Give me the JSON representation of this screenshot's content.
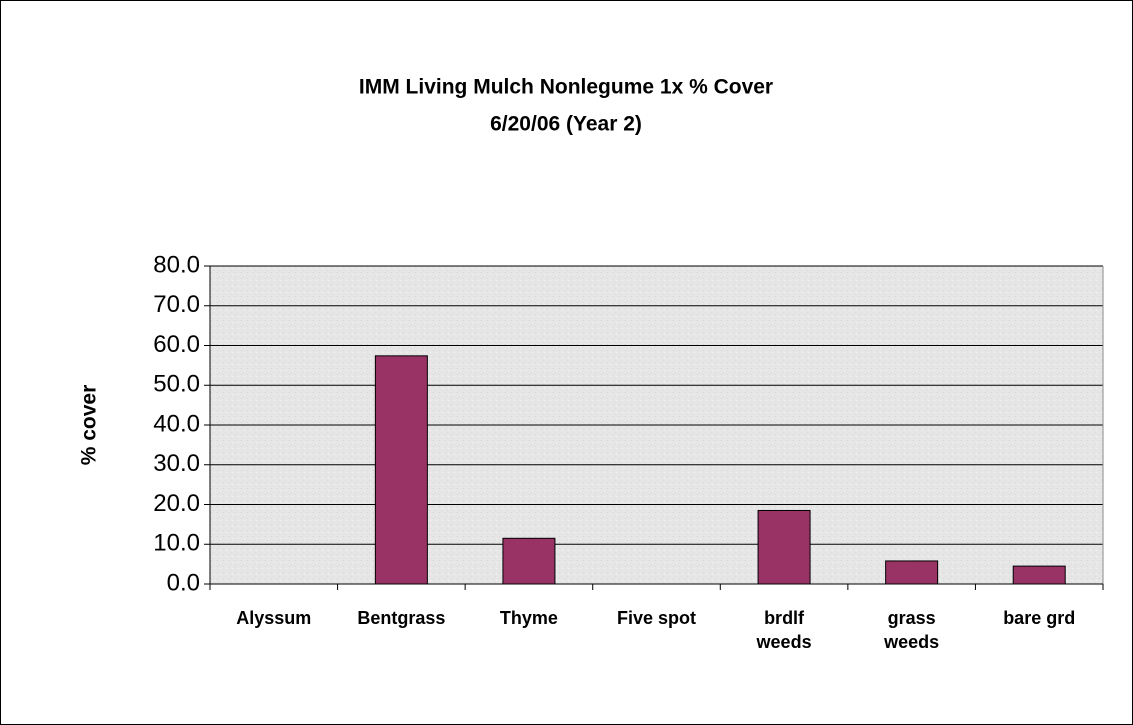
{
  "chart_data": {
    "type": "bar",
    "title": "IMM Living Mulch Nonlegume 1x % Cover",
    "subtitle": "6/20/06 (Year 2)",
    "y_label": "% cover",
    "categories": [
      "Alyssum",
      "Bentgrass",
      "Thyme",
      "Five spot",
      "brdlf\nweeds",
      "grass\nweeds",
      "bare grd"
    ],
    "values": [
      0,
      57.4,
      11.5,
      0,
      18.5,
      5.8,
      4.5
    ],
    "color": "#993366",
    "ylim": [
      0,
      80
    ],
    "yticks": [
      {
        "value": 0,
        "label": "0.0"
      },
      {
        "value": 10,
        "label": "10.0"
      },
      {
        "value": 20,
        "label": "20.0"
      },
      {
        "value": 30,
        "label": "30.0"
      },
      {
        "value": 40,
        "label": "40.0"
      },
      {
        "value": 50,
        "label": "50.0"
      },
      {
        "value": 60,
        "label": "60.0"
      },
      {
        "value": 70,
        "label": "70.0"
      },
      {
        "value": 80,
        "label": "80.0"
      }
    ],
    "grid": true
  }
}
